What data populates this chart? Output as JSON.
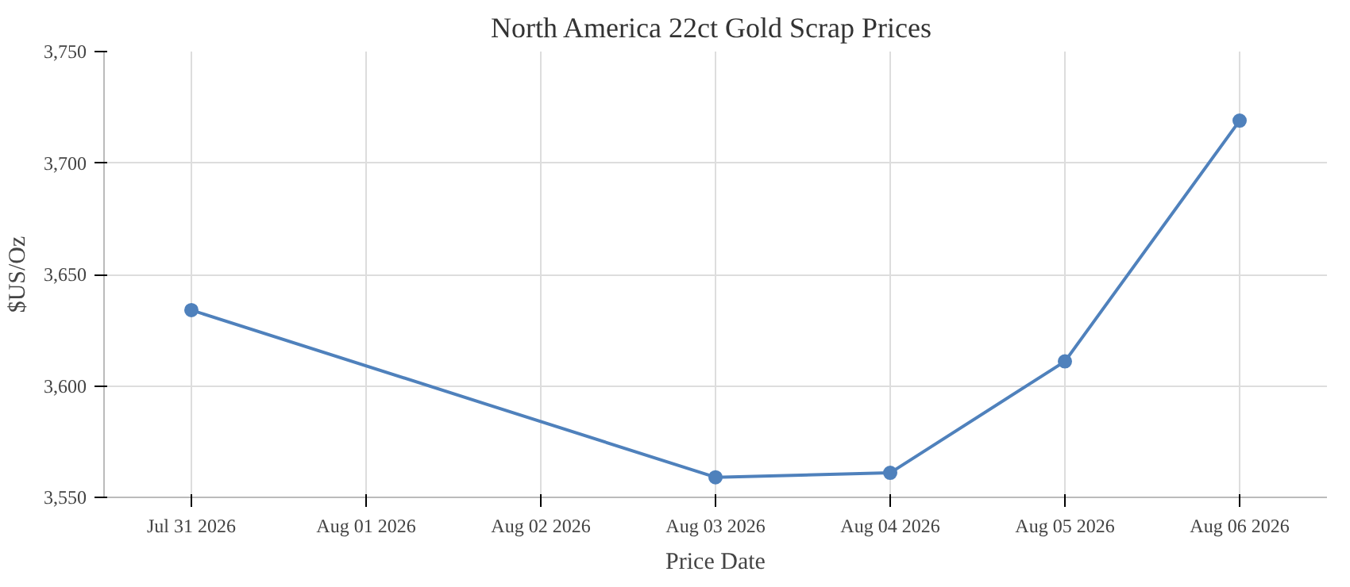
{
  "chart_data": {
    "type": "line",
    "title": "North America 22ct Gold Scrap  Prices",
    "xlabel": "Price Date",
    "ylabel": "$US/Oz",
    "x": [
      "2026-07-31",
      "2026-08-03",
      "2026-08-04",
      "2026-08-05",
      "2026-08-06"
    ],
    "series": [
      {
        "color": "#4f81bc",
        "values": [
          3634,
          3559,
          3561,
          3611,
          3719
        ]
      }
    ],
    "xlim": [
      "2026-07-30T12:00",
      "2026-08-06T12:00"
    ],
    "xticks": [
      {
        "value": "2026-07-31",
        "label": "Jul 31 2026"
      },
      {
        "value": "2026-08-01",
        "label": "Aug 01 2026"
      },
      {
        "value": "2026-08-02",
        "label": "Aug 02 2026"
      },
      {
        "value": "2026-08-03",
        "label": "Aug 03 2026"
      },
      {
        "value": "2026-08-04",
        "label": "Aug 04 2026"
      },
      {
        "value": "2026-08-05",
        "label": "Aug 05 2026"
      },
      {
        "value": "2026-08-06",
        "label": "Aug 06 2026"
      }
    ],
    "ylim": [
      3550,
      3750
    ],
    "yticks": [
      {
        "value": 3550,
        "label": "3,550"
      },
      {
        "value": 3600,
        "label": "3,600"
      },
      {
        "value": 3650,
        "label": "3,650"
      },
      {
        "value": 3700,
        "label": "3,700"
      },
      {
        "value": 3750,
        "label": "3,750"
      }
    ],
    "grid": true,
    "marker": "circle",
    "line_style": "solid"
  }
}
